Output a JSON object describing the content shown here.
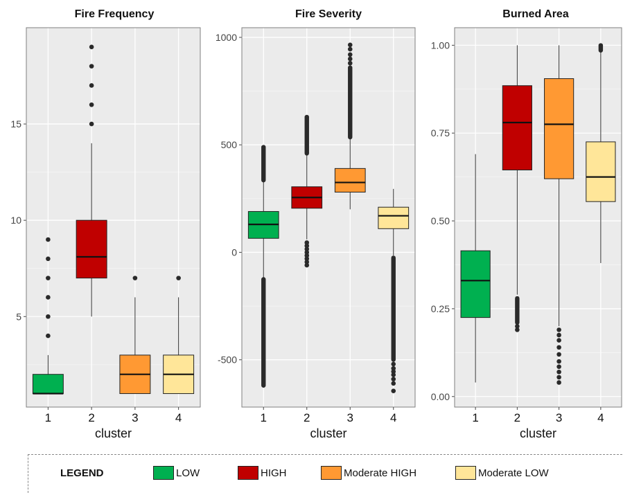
{
  "chart_data": [
    {
      "type": "box",
      "title": "Fire Frequency",
      "xlabel": "cluster",
      "ylabel": "",
      "categories": [
        "1",
        "2",
        "3",
        "4"
      ],
      "ylim": [
        0.3,
        20
      ],
      "yticks": [
        5,
        10,
        15
      ],
      "ytick_labels": [
        "5",
        "10",
        "15"
      ],
      "grid": true,
      "boxes": [
        {
          "category": "1",
          "min": 1,
          "q1": 1,
          "median": 1,
          "q3": 2,
          "max": 3,
          "outliers": [
            4,
            5,
            6,
            7,
            8,
            9
          ]
        },
        {
          "category": "2",
          "min": 5,
          "q1": 7,
          "median": 8.1,
          "q3": 10,
          "max": 14,
          "outliers": [
            15,
            16,
            17,
            18,
            19
          ]
        },
        {
          "category": "3",
          "min": 1,
          "q1": 1,
          "median": 2,
          "q3": 3,
          "max": 6,
          "outliers": [
            7
          ]
        },
        {
          "category": "4",
          "min": 1,
          "q1": 1,
          "median": 2,
          "q3": 3,
          "max": 6,
          "outliers": [
            7
          ]
        }
      ]
    },
    {
      "type": "box",
      "title": "Fire Severity",
      "xlabel": "cluster",
      "ylabel": "",
      "categories": [
        "1",
        "2",
        "3",
        "4"
      ],
      "ylim": [
        -720,
        1045
      ],
      "yticks": [
        -500,
        0,
        500,
        1000
      ],
      "ytick_labels": [
        "-500",
        "0",
        "500",
        "1000"
      ],
      "grid": true,
      "boxes": [
        {
          "category": "1",
          "min": -120,
          "q1": 65,
          "median": 130,
          "q3": 190,
          "max": 330,
          "outliers": [],
          "dense_outliers": [
            [
              335,
              490
            ],
            [
              -620,
              -125
            ]
          ]
        },
        {
          "category": "2",
          "min": 60,
          "q1": 205,
          "median": 255,
          "q3": 305,
          "max": 455,
          "outliers": [
            -60,
            -45,
            -30,
            -15,
            0,
            15,
            30,
            45
          ],
          "dense_outliers": [
            [
              460,
              630
            ]
          ]
        },
        {
          "category": "3",
          "min": 200,
          "q1": 280,
          "median": 325,
          "q3": 390,
          "max": 530,
          "outliers": [
            880,
            900,
            920,
            945,
            965
          ],
          "dense_outliers": [
            [
              535,
              860
            ]
          ]
        },
        {
          "category": "4",
          "min": -15,
          "q1": 110,
          "median": 170,
          "q3": 210,
          "max": 295,
          "outliers": [
            -520,
            -540,
            -555,
            -570,
            -590,
            -610,
            -645
          ],
          "dense_outliers": [
            [
              -500,
              -25
            ]
          ]
        }
      ]
    },
    {
      "type": "box",
      "title": "Burned Area",
      "xlabel": "cluster",
      "ylabel": "",
      "categories": [
        "1",
        "2",
        "3",
        "4"
      ],
      "ylim": [
        -0.03,
        1.05
      ],
      "yticks": [
        0,
        0.25,
        0.5,
        0.75,
        1
      ],
      "ytick_labels": [
        "0.00",
        "0.25",
        "0.50",
        "0.75",
        "1.00"
      ],
      "grid": true,
      "boxes": [
        {
          "category": "1",
          "min": 0.04,
          "q1": 0.225,
          "median": 0.33,
          "q3": 0.415,
          "max": 0.69,
          "outliers": []
        },
        {
          "category": "2",
          "min": 0.29,
          "q1": 0.645,
          "median": 0.78,
          "q3": 0.885,
          "max": 1.0,
          "outliers": [
            0.19,
            0.2
          ],
          "dense_outliers": [
            [
              0.21,
              0.28
            ]
          ]
        },
        {
          "category": "3",
          "min": 0.2,
          "q1": 0.62,
          "median": 0.775,
          "q3": 0.905,
          "max": 1.0,
          "outliers": [
            0.04,
            0.055,
            0.07,
            0.085,
            0.1,
            0.12,
            0.14,
            0.16,
            0.175,
            0.19
          ]
        },
        {
          "category": "4",
          "min": 0.38,
          "q1": 0.555,
          "median": 0.625,
          "q3": 0.725,
          "max": 0.98,
          "outliers": [],
          "dense_outliers": [
            [
              0.985,
              1.0
            ]
          ]
        }
      ]
    }
  ],
  "category_colors": {
    "1": "#00b050",
    "2": "#c00000",
    "3": "#ff9933",
    "4": "#ffe699"
  },
  "legend": {
    "title": "LEGEND",
    "items": [
      {
        "label": "LOW",
        "color": "#00b050"
      },
      {
        "label": "HIGH",
        "color": "#c00000"
      },
      {
        "label": "Moderate HIGH",
        "color": "#ff9933"
      },
      {
        "label": "Moderate LOW",
        "color": "#ffe699"
      }
    ]
  }
}
